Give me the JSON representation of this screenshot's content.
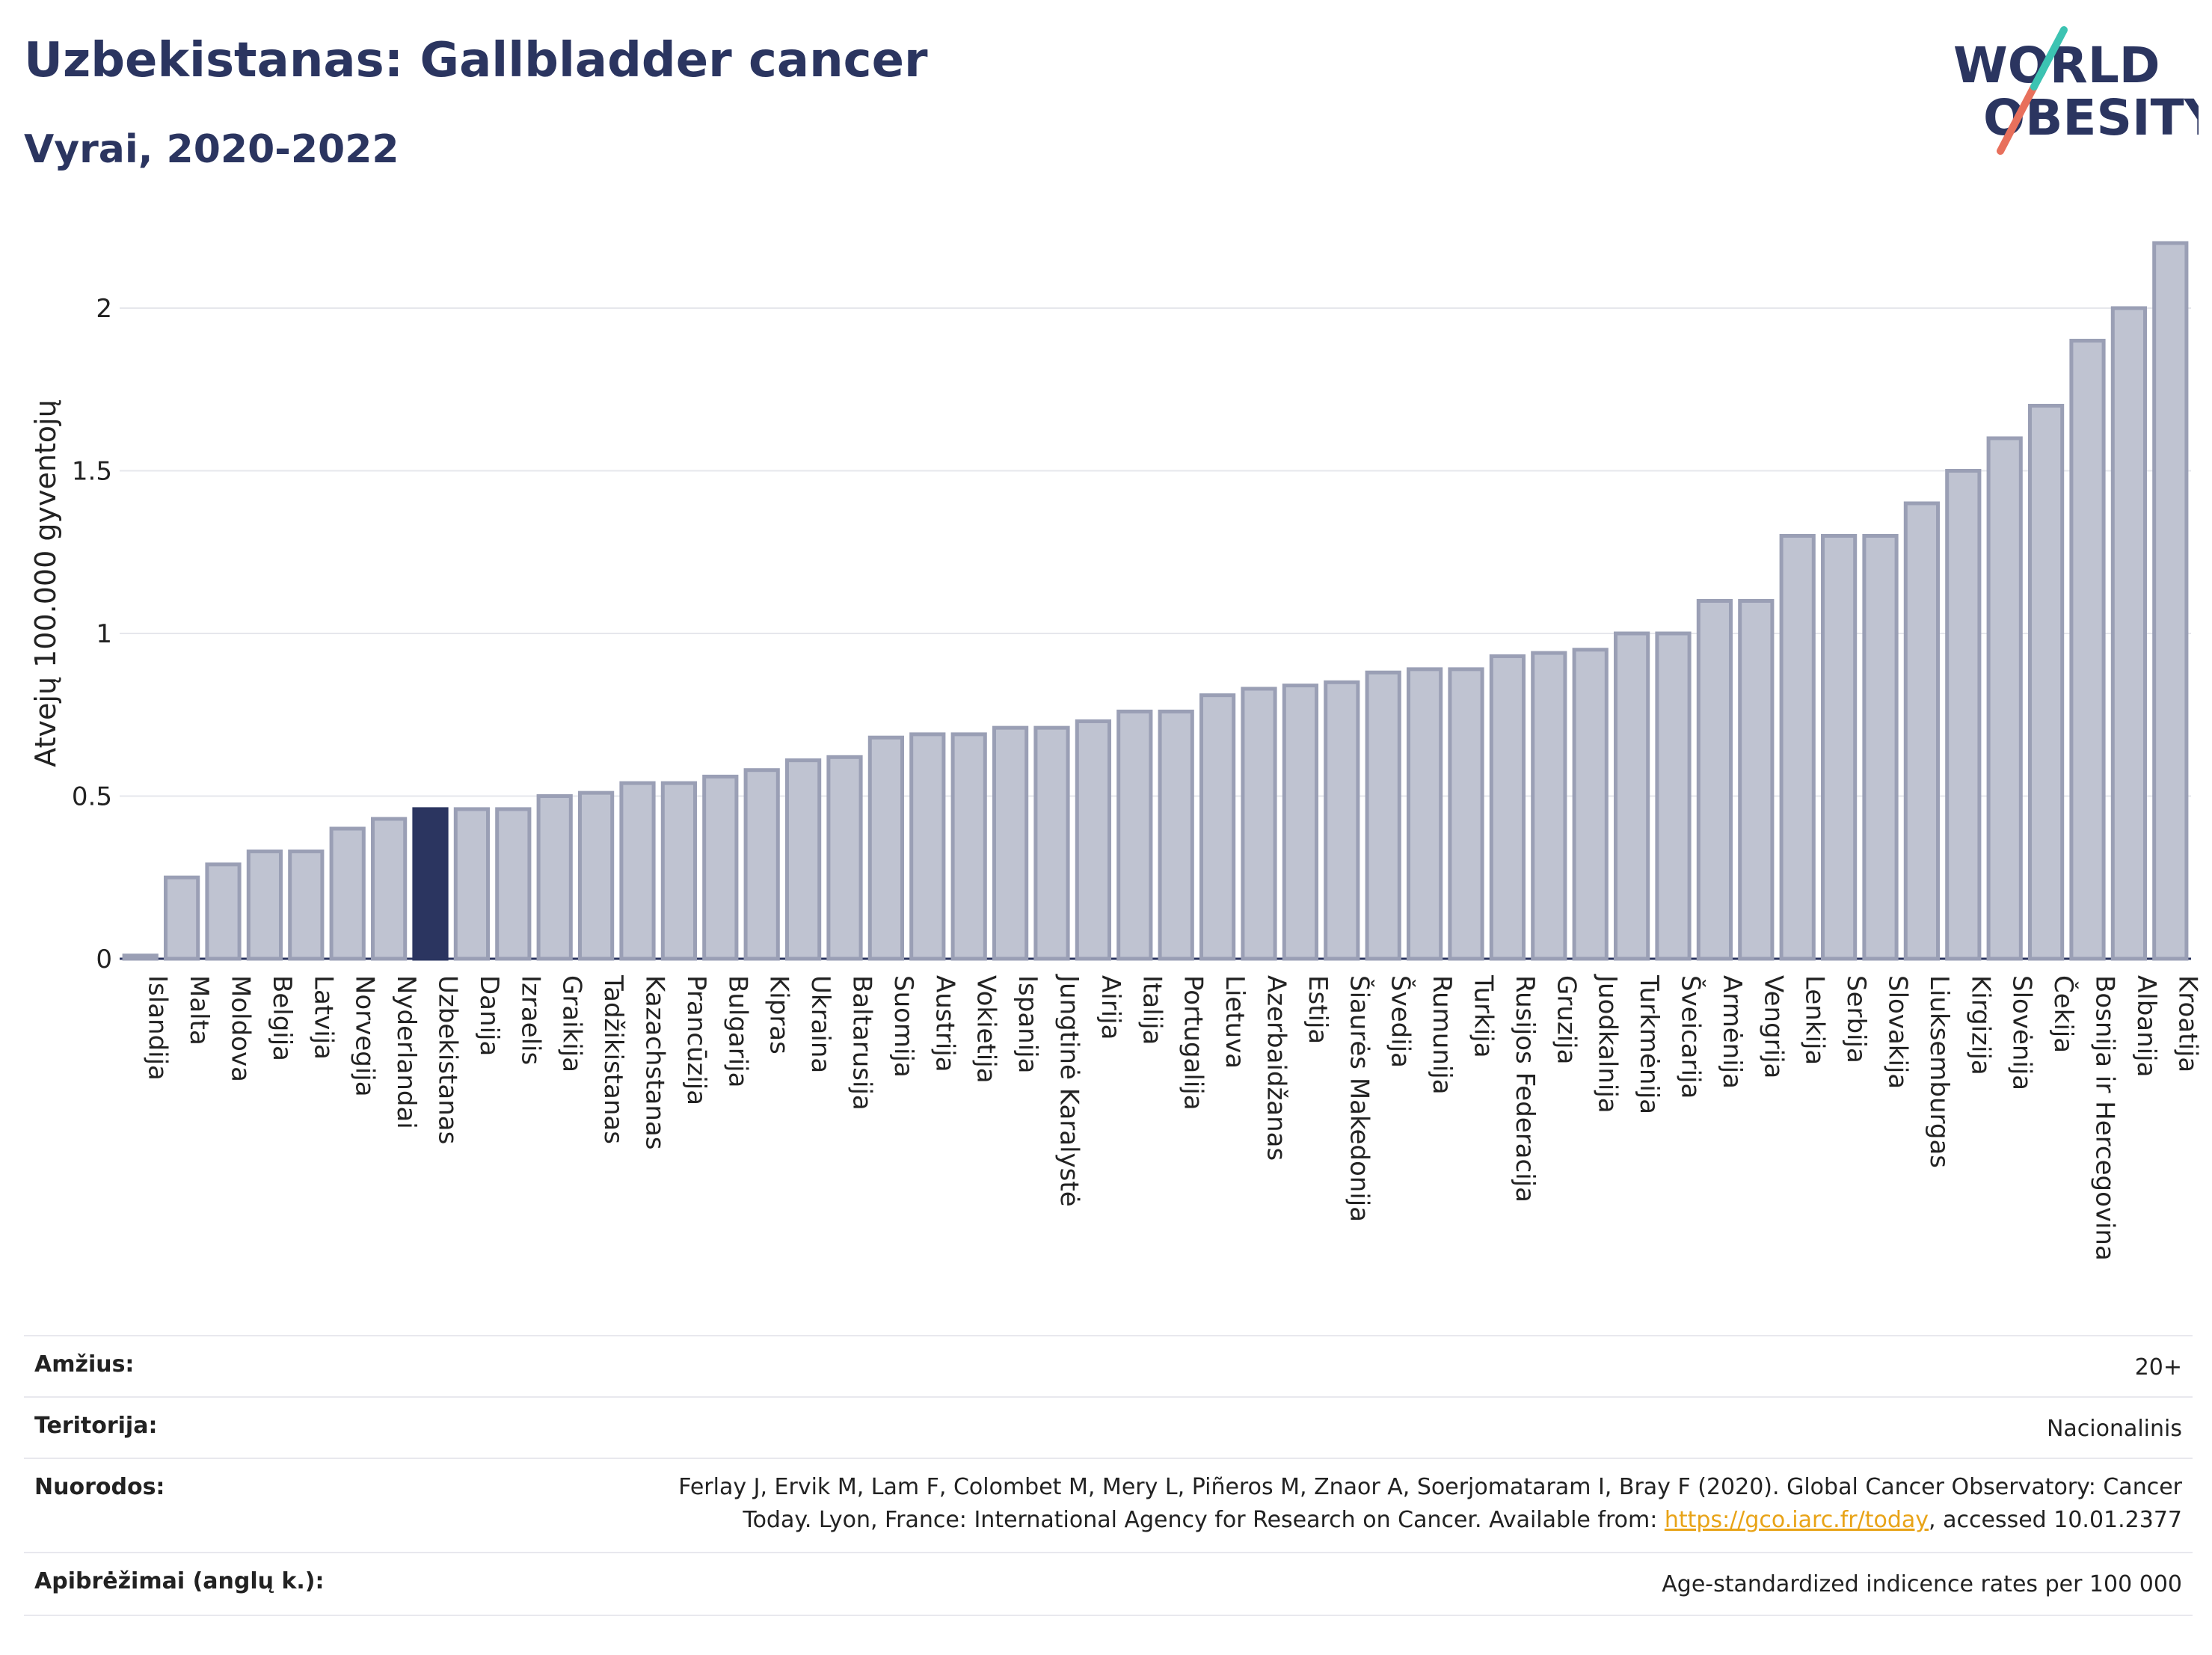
{
  "header": {
    "title": "Uzbekistanas: Gallbladder cancer",
    "subtitle": "Vyrai, 2020-2022",
    "logo_line1": "WORLD",
    "logo_line2": "OBESITY"
  },
  "chart_data": {
    "type": "bar",
    "ylabel": "Atvejų 100.000 gyventojų",
    "ylim": [
      0,
      2.2
    ],
    "yticks": [
      0,
      0.5,
      1,
      1.5,
      2
    ],
    "ytick_labels": [
      "0",
      "0.5",
      "1",
      "1.5",
      "2"
    ],
    "grid": true,
    "highlight": "Uzbekistanas",
    "colors": {
      "bar": "#bfc3d1",
      "bar_border": "#9a9fb5",
      "highlight": "#2b3560"
    },
    "categories": [
      "Islandija",
      "Malta",
      "Moldova",
      "Belgija",
      "Latvija",
      "Norvegija",
      "Nyderlandai",
      "Uzbekistanas",
      "Danija",
      "Izraelis",
      "Graikija",
      "Tadžikistanas",
      "Kazachstanas",
      "Prancūzija",
      "Bulgarija",
      "Kipras",
      "Ukraina",
      "Baltarusija",
      "Suomija",
      "Austrija",
      "Vokietija",
      "Ispanija",
      "Jungtinė Karalystė",
      "Airija",
      "Italija",
      "Portugalija",
      "Lietuva",
      "Azerbaidžanas",
      "Estija",
      "Šiaurės Makedonija",
      "Švedija",
      "Rumunija",
      "Turkija",
      "Rusijos Federacija",
      "Gruzija",
      "Juodkalnija",
      "Turkmėnija",
      "Šveicarija",
      "Armėnija",
      "Vengrija",
      "Lenkija",
      "Serbija",
      "Slovakija",
      "Liuksemburgas",
      "Kirgizija",
      "Slovėnija",
      "Čekija",
      "Bosnija ir Hercegovina",
      "Albanija",
      "Kroatija"
    ],
    "values": [
      0.01,
      0.25,
      0.29,
      0.33,
      0.33,
      0.4,
      0.43,
      0.46,
      0.46,
      0.46,
      0.5,
      0.51,
      0.54,
      0.54,
      0.56,
      0.58,
      0.61,
      0.62,
      0.68,
      0.69,
      0.69,
      0.71,
      0.71,
      0.73,
      0.76,
      0.76,
      0.81,
      0.83,
      0.84,
      0.85,
      0.88,
      0.89,
      0.89,
      0.93,
      0.94,
      0.95,
      1.0,
      1.0,
      1.1,
      1.1,
      1.3,
      1.3,
      1.3,
      1.4,
      1.5,
      1.6,
      1.7,
      1.9,
      2.0,
      2.2
    ]
  },
  "info": {
    "age_label": "Amžius:",
    "age_value": "20+",
    "territory_label": "Teritorija:",
    "territory_value": "Nacionalinis",
    "refs_label": "Nuorodos:",
    "refs_line1": "Ferlay J, Ervik M, Lam F, Colombet M, Mery L, Piñeros M, Znaor A, Soerjomataram I, Bray F (2020). Global Cancer Observatory: Cancer",
    "refs_line2_pre": "Today. Lyon, France: International Agency for Research on Cancer. Available from: ",
    "refs_link": "https://gco.iarc.fr/today",
    "refs_line2_post": ", accessed 10.01.2377",
    "defs_label": "Apibrėžimai (anglų k.):",
    "defs_value": "Age-standardized indicence rates per 100 000"
  }
}
